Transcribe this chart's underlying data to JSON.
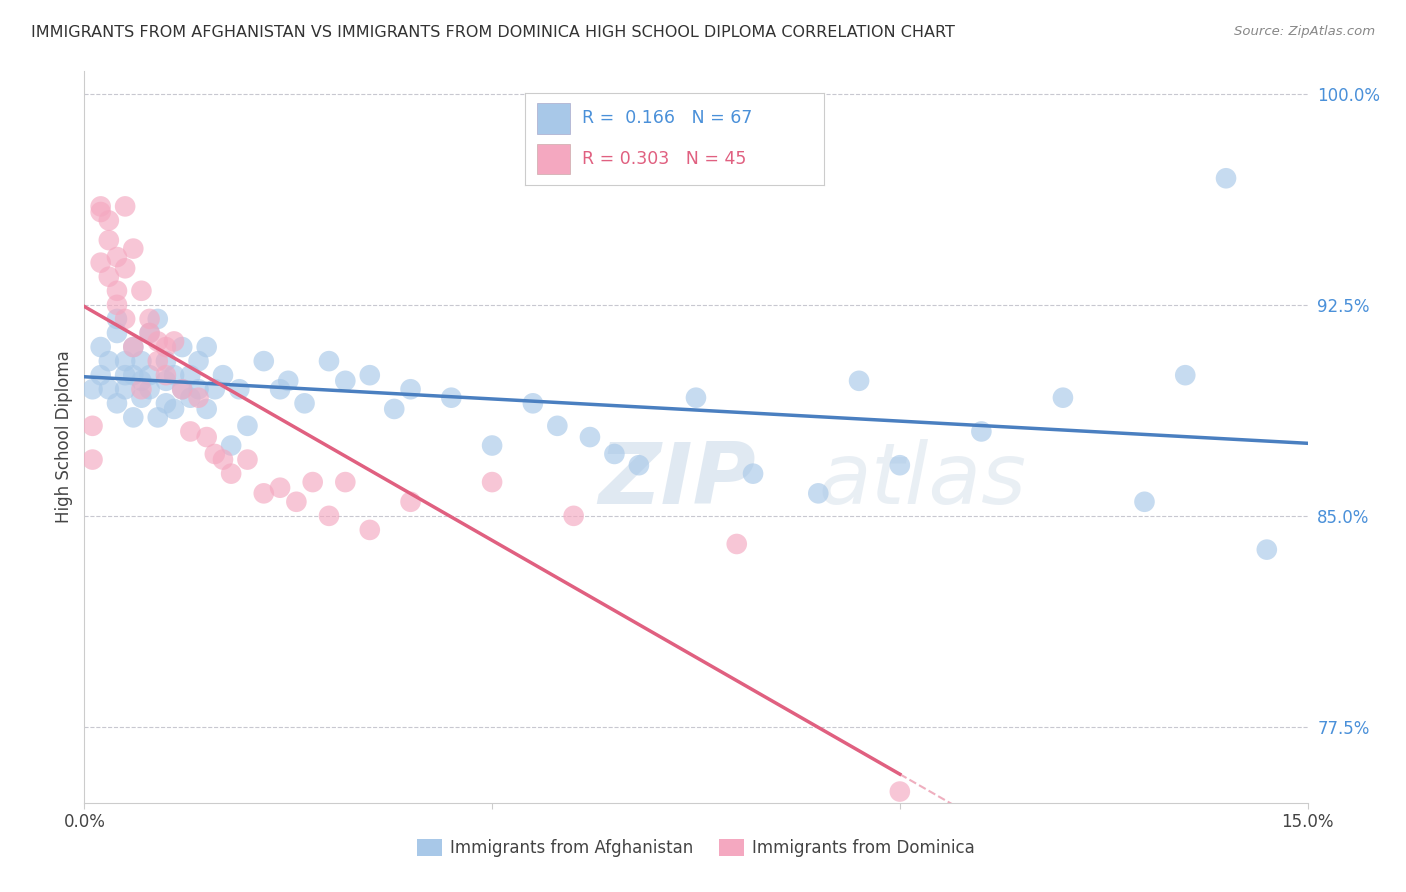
{
  "title": "IMMIGRANTS FROM AFGHANISTAN VS IMMIGRANTS FROM DOMINICA HIGH SCHOOL DIPLOMA CORRELATION CHART",
  "source": "Source: ZipAtlas.com",
  "ylabel": "High School Diploma",
  "x_min": 0.0,
  "x_max": 0.15,
  "y_min": 0.748,
  "y_max": 1.008,
  "color_afghanistan": "#a8c8e8",
  "color_dominica": "#f4a8c0",
  "line_color_afghanistan": "#4a7fc0",
  "line_color_dominica": "#e06080",
  "R_afghanistan": 0.166,
  "N_afghanistan": 67,
  "R_dominica": 0.303,
  "N_dominica": 45,
  "legend_labels": [
    "Immigrants from Afghanistan",
    "Immigrants from Dominica"
  ],
  "watermark_zip": "ZIP",
  "watermark_atlas": "atlas",
  "af_x": [
    0.001,
    0.002,
    0.002,
    0.003,
    0.003,
    0.004,
    0.004,
    0.004,
    0.005,
    0.005,
    0.005,
    0.006,
    0.006,
    0.006,
    0.007,
    0.007,
    0.007,
    0.008,
    0.008,
    0.008,
    0.009,
    0.009,
    0.01,
    0.01,
    0.01,
    0.011,
    0.011,
    0.012,
    0.012,
    0.013,
    0.013,
    0.014,
    0.014,
    0.015,
    0.015,
    0.016,
    0.017,
    0.018,
    0.019,
    0.02,
    0.022,
    0.024,
    0.025,
    0.027,
    0.03,
    0.032,
    0.035,
    0.038,
    0.04,
    0.045,
    0.05,
    0.055,
    0.058,
    0.062,
    0.065,
    0.068,
    0.075,
    0.082,
    0.09,
    0.095,
    0.1,
    0.11,
    0.12,
    0.13,
    0.135,
    0.14,
    0.145
  ],
  "af_y": [
    0.895,
    0.91,
    0.9,
    0.905,
    0.895,
    0.92,
    0.915,
    0.89,
    0.9,
    0.905,
    0.895,
    0.91,
    0.9,
    0.885,
    0.905,
    0.898,
    0.892,
    0.9,
    0.915,
    0.895,
    0.92,
    0.885,
    0.898,
    0.89,
    0.905,
    0.9,
    0.888,
    0.895,
    0.91,
    0.9,
    0.892,
    0.905,
    0.895,
    0.91,
    0.888,
    0.895,
    0.9,
    0.875,
    0.895,
    0.882,
    0.905,
    0.895,
    0.898,
    0.89,
    0.905,
    0.898,
    0.9,
    0.888,
    0.895,
    0.892,
    0.875,
    0.89,
    0.882,
    0.878,
    0.872,
    0.868,
    0.892,
    0.865,
    0.858,
    0.898,
    0.868,
    0.88,
    0.892,
    0.855,
    0.9,
    0.97,
    0.838
  ],
  "dom_x": [
    0.001,
    0.001,
    0.002,
    0.002,
    0.002,
    0.003,
    0.003,
    0.003,
    0.004,
    0.004,
    0.004,
    0.005,
    0.005,
    0.005,
    0.006,
    0.006,
    0.007,
    0.007,
    0.008,
    0.008,
    0.009,
    0.009,
    0.01,
    0.01,
    0.011,
    0.012,
    0.013,
    0.014,
    0.015,
    0.016,
    0.017,
    0.018,
    0.02,
    0.022,
    0.024,
    0.026,
    0.028,
    0.03,
    0.032,
    0.035,
    0.04,
    0.05,
    0.06,
    0.08,
    0.1
  ],
  "dom_y": [
    0.882,
    0.87,
    0.96,
    0.958,
    0.94,
    0.955,
    0.948,
    0.935,
    0.942,
    0.93,
    0.925,
    0.938,
    0.96,
    0.92,
    0.945,
    0.91,
    0.93,
    0.895,
    0.92,
    0.915,
    0.912,
    0.905,
    0.91,
    0.9,
    0.912,
    0.895,
    0.88,
    0.892,
    0.878,
    0.872,
    0.87,
    0.865,
    0.87,
    0.858,
    0.86,
    0.855,
    0.862,
    0.85,
    0.862,
    0.845,
    0.855,
    0.862,
    0.85,
    0.84,
    0.752
  ]
}
